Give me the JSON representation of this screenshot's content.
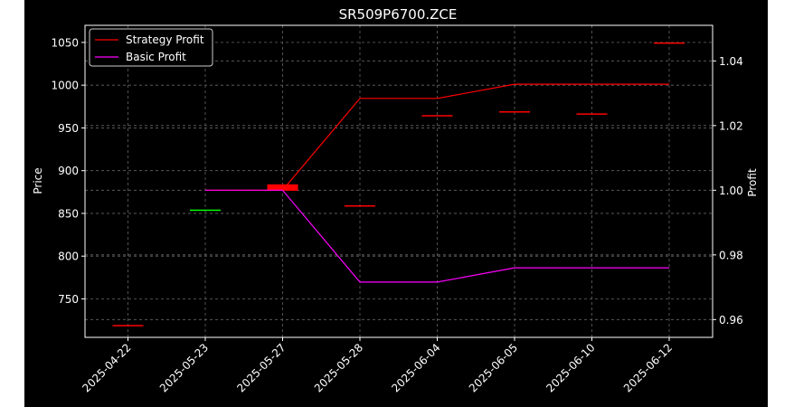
{
  "chart_data": {
    "type": "line",
    "title": "SR509P6700.ZCE",
    "ylabel_left": "Price",
    "ylabel_right": "Profit",
    "categories": [
      "2025-04-22",
      "2025-05-23",
      "2025-05-27",
      "2025-05-28",
      "2025-06-04",
      "2025-06-05",
      "2025-06-10",
      "2025-06-12"
    ],
    "price_ylim": [
      705,
      1070
    ],
    "price_yticks": [
      750,
      800,
      850,
      900,
      950,
      1000,
      1050
    ],
    "profit_ylim": [
      0.9545,
      1.051
    ],
    "profit_yticks": [
      0.96,
      0.98,
      1.0,
      1.02,
      1.04
    ],
    "grid": true,
    "legend_position": "upper-left",
    "series": [
      {
        "name": "Strategy Profit",
        "color": "#ff0000",
        "axis": "right",
        "values": [
          null,
          1.0,
          1.0,
          1.0284,
          1.0284,
          1.0328,
          1.0328,
          1.0328
        ]
      },
      {
        "name": "Basic Profit",
        "color": "#ff00ff",
        "axis": "right",
        "values": [
          null,
          1.0,
          1.0,
          0.9716,
          0.9716,
          0.976,
          0.976,
          0.976
        ]
      }
    ],
    "candles": [
      {
        "date": "2025-04-22",
        "open": 719.5,
        "close": 719.5,
        "high": 719.5,
        "low": 719.5,
        "color": "#ff0000"
      },
      {
        "date": "2025-05-23",
        "open": 854.5,
        "close": 854.5,
        "high": 854.5,
        "low": 854.5,
        "color": "#00ff00"
      },
      {
        "date": "2025-05-27",
        "open": 876.5,
        "close": 884,
        "high": 884,
        "low": 876.5,
        "color": "#ff0000"
      },
      {
        "date": "2025-05-28",
        "open": 859.5,
        "close": 859.5,
        "high": 859.5,
        "low": 859.5,
        "color": "#ff0000"
      },
      {
        "date": "2025-06-04",
        "open": 965,
        "close": 965,
        "high": 965,
        "low": 965,
        "color": "#ff0000"
      },
      {
        "date": "2025-06-05",
        "open": 969.5,
        "close": 969.5,
        "high": 969.5,
        "low": 969.5,
        "color": "#ff0000"
      },
      {
        "date": "2025-06-10",
        "open": 967,
        "close": 967,
        "high": 967,
        "low": 967,
        "color": "#ff0000"
      },
      {
        "date": "2025-06-12",
        "open": 1050,
        "close": 1050,
        "high": 1050,
        "low": 1050,
        "color": "#ff0000"
      }
    ]
  }
}
